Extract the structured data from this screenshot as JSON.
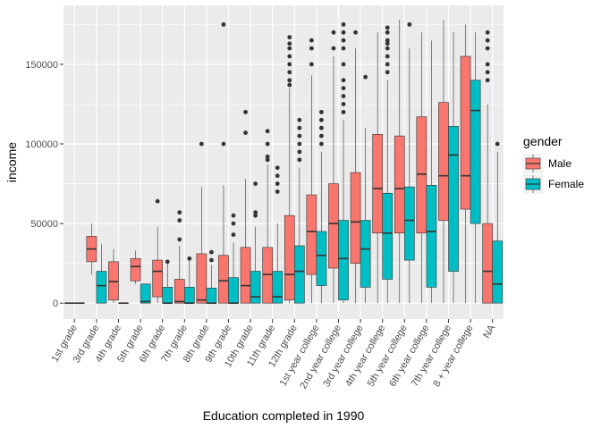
{
  "chart_data": {
    "type": "boxplot",
    "title": "",
    "xlabel": "Education completed in 1990",
    "ylabel": "income",
    "ylim": [
      -10000,
      187000
    ],
    "yticks": [
      0,
      50000,
      100000,
      150000
    ],
    "ytick_labels": [
      "0",
      "50000",
      "100000",
      "150000"
    ],
    "grid": true,
    "legend": {
      "title": "gender",
      "placement": "right"
    },
    "categories": [
      "1st grade",
      "3rd grade",
      "4th grade",
      "5th grade",
      "6th grade",
      "7th grade",
      "8th grade",
      "9th grade",
      "10th grade",
      "11th grade",
      "12th grade",
      "1st year college",
      "2nd year college",
      "3rd year college",
      "4th year college",
      "5th year college",
      "6th year college",
      "7th year college",
      "8 + year college",
      "NA"
    ],
    "series": [
      {
        "name": "Male",
        "color": "#F8766D",
        "boxes": [
          {
            "min": 0,
            "q1": 0,
            "median": 0,
            "q3": 0,
            "max": 0,
            "outliers": []
          },
          {
            "min": 18000,
            "q1": 26000,
            "median": 34000,
            "q3": 42000,
            "max": 50000,
            "outliers": []
          },
          {
            "min": 0,
            "q1": 2000,
            "median": 13500,
            "q3": 26000,
            "max": 34000,
            "outliers": []
          },
          {
            "min": 12000,
            "q1": 14000,
            "median": 23000,
            "q3": 28000,
            "max": 33000,
            "outliers": []
          },
          {
            "min": 0,
            "q1": 4000,
            "median": 20000,
            "q3": 27000,
            "max": 48000,
            "outliers": [
              64000
            ]
          },
          {
            "min": 0,
            "q1": 0,
            "median": 1000,
            "q3": 15000,
            "max": 36000,
            "outliers": [
              40000,
              52000,
              57000
            ]
          },
          {
            "min": 0,
            "q1": 0,
            "median": 2000,
            "q3": 31000,
            "max": 73000,
            "outliers": [
              100000
            ]
          },
          {
            "min": 0,
            "q1": 0,
            "median": 14000,
            "q3": 30000,
            "max": 74000,
            "outliers": [
              100000,
              175000
            ]
          },
          {
            "min": 0,
            "q1": 0,
            "median": 11000,
            "q3": 35000,
            "max": 78000,
            "outliers": [
              107000,
              120000
            ]
          },
          {
            "min": 0,
            "q1": 0,
            "median": 18000,
            "q3": 35000,
            "max": 87000,
            "outliers": [
              90000,
              92000,
              100000,
              108000
            ]
          },
          {
            "min": 0,
            "q1": 2000,
            "median": 18000,
            "q3": 55000,
            "max": 135000,
            "outliers": [
              137000,
              140000,
              145000,
              150000,
              155000,
              160000,
              163000,
              167000
            ]
          },
          {
            "min": 0,
            "q1": 18000,
            "median": 45000,
            "q3": 68000,
            "max": 143000,
            "outliers": [
              150000,
              160000,
              165000
            ]
          },
          {
            "min": 0,
            "q1": 22000,
            "median": 50000,
            "q3": 75000,
            "max": 155000,
            "outliers": [
              160000,
              170000
            ]
          },
          {
            "min": 0,
            "q1": 25000,
            "median": 51000,
            "q3": 82000,
            "max": 160000,
            "outliers": [
              170000
            ]
          },
          {
            "min": 0,
            "q1": 44000,
            "median": 72000,
            "q3": 106000,
            "max": 170000,
            "outliers": []
          },
          {
            "min": 0,
            "q1": 44000,
            "median": 72000,
            "q3": 105000,
            "max": 178000,
            "outliers": []
          },
          {
            "min": 0,
            "q1": 44000,
            "median": 81000,
            "q3": 117000,
            "max": 170000,
            "outliers": []
          },
          {
            "min": 0,
            "q1": 52000,
            "median": 80000,
            "q3": 126000,
            "max": 178000,
            "outliers": []
          },
          {
            "min": 0,
            "q1": 59000,
            "median": 80000,
            "q3": 155000,
            "max": 175000,
            "outliers": []
          },
          {
            "min": 0,
            "q1": 0,
            "median": 20000,
            "q3": 50000,
            "max": 125000,
            "outliers": [
              140000,
              145000,
              150000,
              160000,
              165000,
              170000
            ]
          }
        ]
      },
      {
        "name": "Female",
        "color": "#00BFC4",
        "boxes": [
          {
            "min": 0,
            "q1": 0,
            "median": 0,
            "q3": 0,
            "max": 0,
            "outliers": []
          },
          {
            "min": 0,
            "q1": 0,
            "median": 11000,
            "q3": 20000,
            "max": 37000,
            "outliers": []
          },
          {
            "min": 0,
            "q1": 0,
            "median": 0,
            "q3": 0,
            "max": 0,
            "outliers": []
          },
          {
            "min": 0,
            "q1": 0,
            "median": 1000,
            "q3": 12000,
            "max": 12000,
            "outliers": []
          },
          {
            "min": 0,
            "q1": 0,
            "median": 0,
            "q3": 10000,
            "max": 25000,
            "outliers": [
              26000
            ]
          },
          {
            "min": 0,
            "q1": 0,
            "median": 0,
            "q3": 10000,
            "max": 27000,
            "outliers": [
              28000
            ]
          },
          {
            "min": 0,
            "q1": 0,
            "median": 0,
            "q3": 9500,
            "max": 24000,
            "outliers": [
              27000,
              32000
            ]
          },
          {
            "min": 0,
            "q1": 0,
            "median": 0,
            "q3": 16000,
            "max": 38000,
            "outliers": [
              43000,
              50000,
              55000
            ]
          },
          {
            "min": 0,
            "q1": 0,
            "median": 4000,
            "q3": 20000,
            "max": 48000,
            "outliers": [
              55000,
              57000,
              75000
            ]
          },
          {
            "min": 0,
            "q1": 0,
            "median": 4000,
            "q3": 20000,
            "max": 50000,
            "outliers": [
              70000,
              75000,
              80000,
              85000
            ]
          },
          {
            "min": 0,
            "q1": 0,
            "median": 20000,
            "q3": 36000,
            "max": 85000,
            "outliers": [
              90000,
              95000,
              100000,
              105000,
              110000,
              115000
            ]
          },
          {
            "min": 0,
            "q1": 11000,
            "median": 30000,
            "q3": 45000,
            "max": 95000,
            "outliers": [
              100000,
              105000,
              110000,
              115000,
              120000
            ]
          },
          {
            "min": 0,
            "q1": 2000,
            "median": 28000,
            "q3": 52000,
            "max": 115000,
            "outliers": [
              120000,
              125000,
              130000,
              135000,
              140000,
              150000,
              160000,
              165000,
              170000,
              175000
            ]
          },
          {
            "min": 0,
            "q1": 10000,
            "median": 34000,
            "q3": 52000,
            "max": 110000,
            "outliers": [
              142000
            ]
          },
          {
            "min": 0,
            "q1": 15000,
            "median": 44000,
            "q3": 69000,
            "max": 140000,
            "outliers": [
              145000,
              150000,
              155000,
              160000,
              163000,
              165000,
              170000,
              173000
            ]
          },
          {
            "min": 0,
            "q1": 27000,
            "median": 52000,
            "q3": 73000,
            "max": 160000,
            "outliers": [
              175000
            ]
          },
          {
            "min": 0,
            "q1": 10000,
            "median": 45000,
            "q3": 74000,
            "max": 165000,
            "outliers": []
          },
          {
            "min": 0,
            "q1": 20000,
            "median": 93000,
            "q3": 111000,
            "max": 170000,
            "outliers": []
          },
          {
            "min": 0,
            "q1": 50000,
            "median": 121000,
            "q3": 140000,
            "max": 170000,
            "outliers": []
          },
          {
            "min": 0,
            "q1": 0,
            "median": 12000,
            "q3": 39000,
            "max": 95000,
            "outliers": [
              100000
            ]
          }
        ]
      }
    ]
  }
}
